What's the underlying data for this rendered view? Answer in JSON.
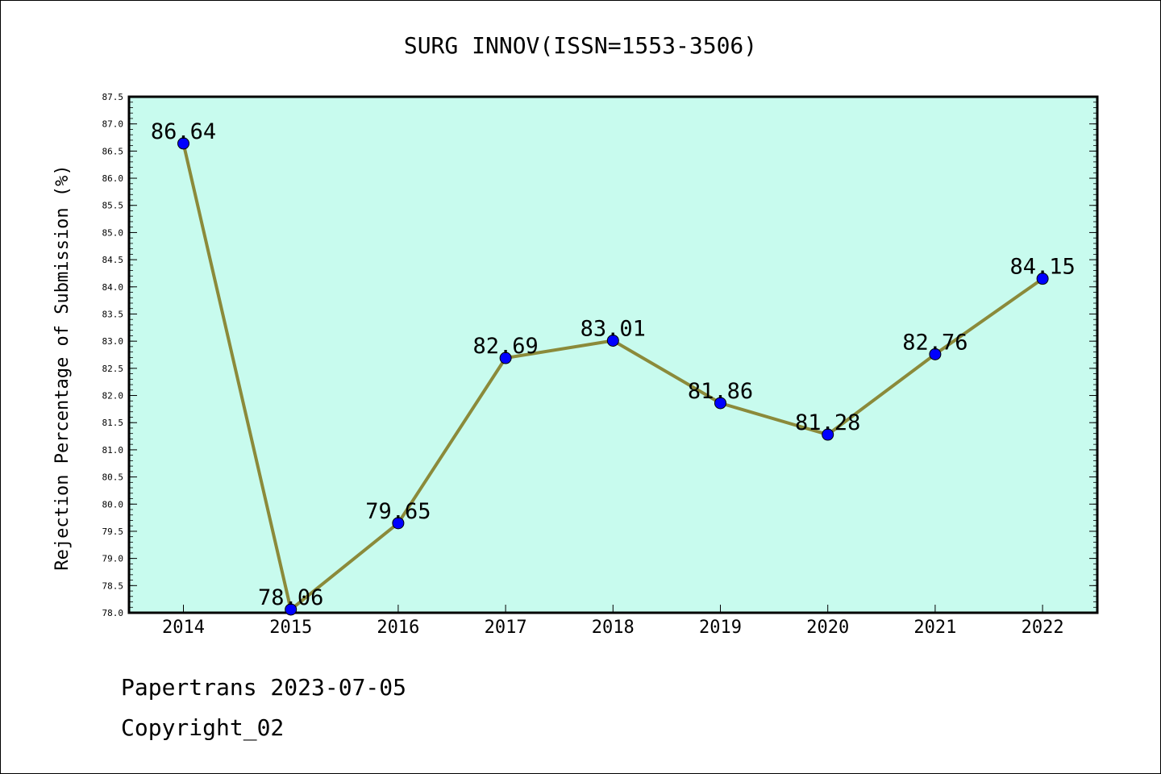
{
  "chart_data": {
    "type": "line",
    "title": "SURG INNOV(ISSN=1553-3506)",
    "ylabel": "Rejection Percentage of Submission (%)",
    "xlabel": "",
    "categories": [
      "2014",
      "2015",
      "2016",
      "2017",
      "2018",
      "2019",
      "2020",
      "2021",
      "2022"
    ],
    "values": [
      86.64,
      78.06,
      79.65,
      82.69,
      83.01,
      81.86,
      81.28,
      82.76,
      84.15
    ],
    "value_labels": [
      "86.64",
      "78.06",
      "79.65",
      "82.69",
      "83.01",
      "81.86",
      "81.28",
      "82.76",
      "84.15"
    ],
    "ylim": [
      78.0,
      87.5
    ],
    "yticks": [
      "78.0",
      "78.5",
      "79.0",
      "79.5",
      "80.0",
      "80.5",
      "81.0",
      "81.5",
      "82.0",
      "82.5",
      "83.0",
      "83.5",
      "84.0",
      "84.5",
      "85.0",
      "85.5",
      "86.0",
      "86.5",
      "87.0",
      "87.5"
    ],
    "grid": false,
    "colors": {
      "plot_background": "#c8fbee",
      "line": "#8b8a3a",
      "marker": "#0000ff"
    }
  },
  "footer": {
    "line1": "Papertrans 2023-07-05",
    "line2": "Copyright_02"
  }
}
